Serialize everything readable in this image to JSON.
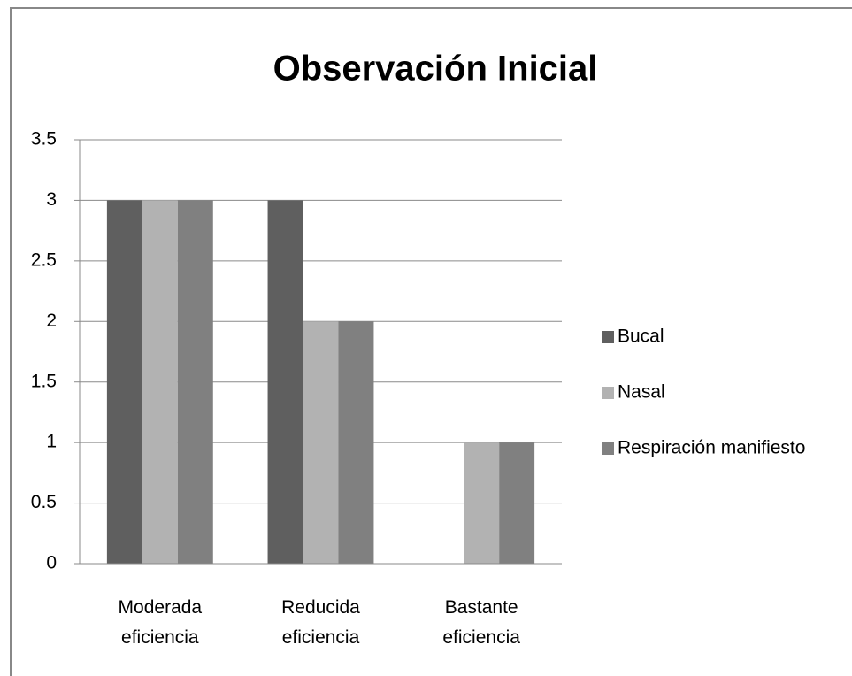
{
  "chart_data": {
    "type": "bar",
    "title": "Observación Inicial",
    "categories": [
      "Moderada eficiencia",
      "Reducida eficiencia",
      "Bastante eficiencia"
    ],
    "series": [
      {
        "name": "Bucal",
        "color": "#5f5f5f",
        "values": [
          3,
          3,
          0
        ]
      },
      {
        "name": "Nasal",
        "color": "#b2b2b2",
        "values": [
          3,
          2,
          1
        ]
      },
      {
        "name": "Respiración manifiesto",
        "color": "#808080",
        "values": [
          3,
          2,
          1
        ]
      }
    ],
    "ylim": [
      0,
      3.5
    ],
    "yticks": [
      0,
      0.5,
      1,
      1.5,
      2,
      2.5,
      3,
      3.5
    ],
    "grid": true,
    "legend": "right"
  }
}
